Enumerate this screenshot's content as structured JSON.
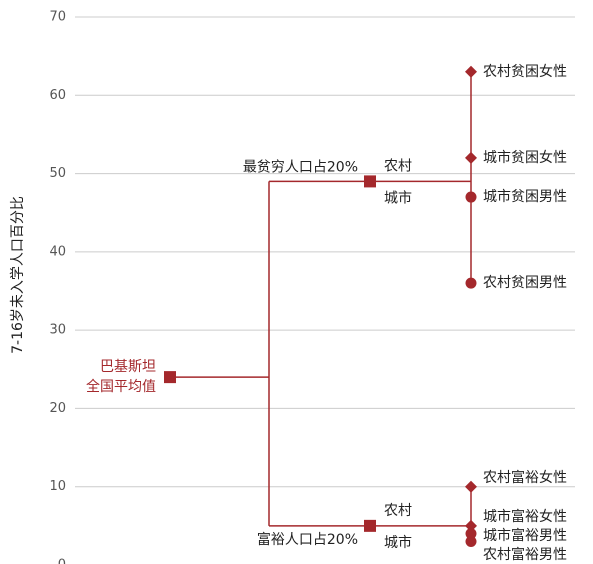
{
  "chart_data": {
    "type": "tree",
    "ylabel": "7-16岁未入学人口百分比",
    "ylim": [
      0,
      70
    ],
    "yticks": [
      0,
      10,
      20,
      30,
      40,
      50,
      60,
      70
    ],
    "grid": true,
    "color": "#a4282c",
    "root": {
      "label": [
        "巴基斯坦",
        "全国平均值"
      ],
      "value": 24
    },
    "groups": [
      {
        "label": "最贫穷人口占20%",
        "value": 49,
        "label_side": "above",
        "branches": [
          "农村",
          "城市"
        ],
        "leaves": [
          {
            "label": "农村贫困女性",
            "value": 63,
            "marker": "diamond"
          },
          {
            "label": "城市贫困女性",
            "value": 52,
            "marker": "diamond"
          },
          {
            "label": "城市贫困男性",
            "value": 47,
            "marker": "circle"
          },
          {
            "label": "农村贫困男性",
            "value": 36,
            "marker": "circle"
          }
        ]
      },
      {
        "label": "富裕人口占20%",
        "value": 5,
        "label_side": "below",
        "branches": [
          "农村",
          "城市"
        ],
        "leaves": [
          {
            "label": "农村富裕女性",
            "value": 10,
            "marker": "diamond"
          },
          {
            "label": "城市富裕女性",
            "value": 5,
            "marker": "diamond"
          },
          {
            "label": "城市富裕男性",
            "value": 4,
            "marker": "circle"
          },
          {
            "label": "农村富裕男性",
            "value": 3,
            "marker": "circle"
          }
        ]
      }
    ]
  }
}
